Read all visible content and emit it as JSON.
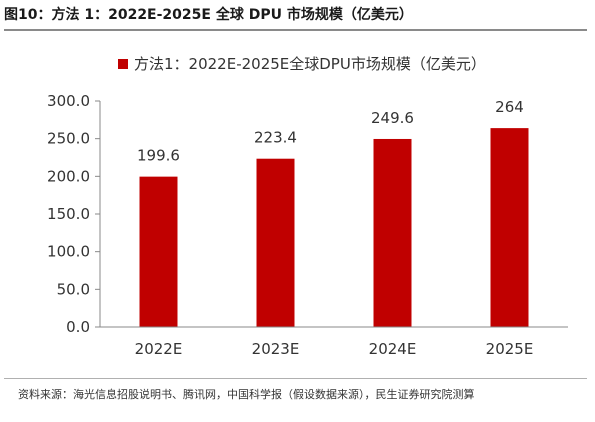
{
  "figure": {
    "title": "图10：方法 1：2022E-2025E 全球 DPU 市场规模（亿美元）",
    "source": "资料来源：海光信息招股说明书、腾讯网，中国科学报（假设数据来源），民生证券研究院测算"
  },
  "chart_data": {
    "type": "bar",
    "categories": [
      "2022E",
      "2023E",
      "2024E",
      "2025E"
    ],
    "series": [
      {
        "name": "方法1：2022E-2025E全球DPU市场规模（亿美元）",
        "values": [
          199.6,
          223.4,
          249.6,
          264
        ],
        "data_labels": [
          "199.6",
          "223.4",
          "249.6",
          "264"
        ],
        "color": "#c00000"
      }
    ],
    "ylim": [
      0,
      300
    ],
    "yticks": [
      "0.0",
      "50.0",
      "100.0",
      "150.0",
      "200.0",
      "250.0",
      "300.0"
    ],
    "grid": false,
    "legend_position": "top-center"
  }
}
